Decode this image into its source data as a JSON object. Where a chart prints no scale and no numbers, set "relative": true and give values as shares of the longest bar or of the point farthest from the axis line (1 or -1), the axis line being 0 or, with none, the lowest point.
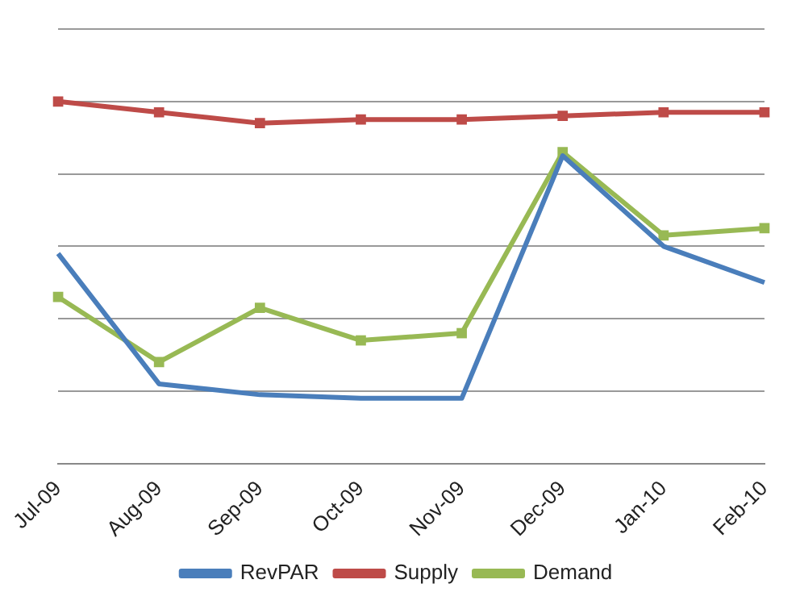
{
  "chart_data": {
    "type": "line",
    "relative": true,
    "grid": "y",
    "legend": "bottom",
    "categories": [
      "Jul-09",
      "Aug-09",
      "Sep-09",
      "Oct-09",
      "Nov-09",
      "Dec-09",
      "Jan-10",
      "Feb-10"
    ],
    "series": [
      {
        "name": "RevPAR",
        "color": "#4a7ebb",
        "marker": "none",
        "values": [
          0.58,
          0.22,
          0.19,
          0.18,
          0.18,
          0.85,
          0.6,
          0.5
        ]
      },
      {
        "name": "Supply",
        "color": "#be4b48",
        "marker": "square",
        "values": [
          1.0,
          0.97,
          0.94,
          0.95,
          0.95,
          0.96,
          0.97,
          0.97
        ]
      },
      {
        "name": "Demand",
        "color": "#98b954",
        "marker": "square",
        "values": [
          0.46,
          0.28,
          0.43,
          0.34,
          0.36,
          0.86,
          0.63,
          0.65
        ]
      }
    ]
  }
}
